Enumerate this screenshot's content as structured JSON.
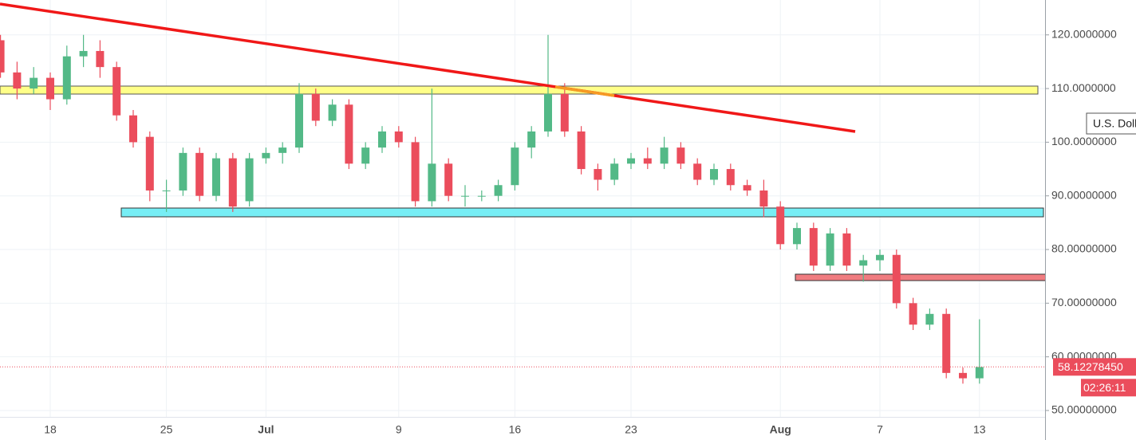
{
  "chart_data": {
    "type": "candlestick",
    "categories": [
      null,
      null,
      null,
      "18",
      null,
      null,
      null,
      null,
      null,
      null,
      "25",
      null,
      null,
      null,
      null,
      null,
      "Jul",
      null,
      null,
      null,
      null,
      null,
      null,
      null,
      "9",
      null,
      null,
      null,
      null,
      null,
      null,
      "16",
      null,
      null,
      null,
      null,
      null,
      null,
      "23",
      null,
      null,
      null,
      null,
      null,
      null,
      null,
      null,
      "Aug",
      null,
      null,
      null,
      null,
      null,
      "7",
      null,
      null,
      null,
      null,
      null,
      "13",
      null,
      null,
      null
    ],
    "open": [
      119,
      113,
      110,
      112,
      108,
      116,
      117,
      114,
      105,
      101,
      91,
      91,
      98,
      90,
      97,
      89,
      97,
      98,
      99,
      109,
      104,
      107,
      96,
      99,
      102,
      100,
      89,
      96,
      90,
      90,
      90,
      92,
      99,
      102,
      109,
      102,
      95,
      93,
      96,
      97,
      96,
      99,
      96,
      93,
      95,
      92,
      91,
      88,
      81,
      84,
      77,
      83,
      77,
      78,
      79,
      70,
      66,
      68,
      57,
      56,
      null,
      null,
      null
    ],
    "high": [
      120,
      115,
      114,
      113,
      118,
      120,
      119,
      115,
      106,
      102,
      93,
      99,
      99,
      98,
      98,
      98,
      99,
      100,
      111,
      110,
      108,
      108,
      100,
      103,
      103,
      101,
      110,
      97,
      92,
      91,
      93,
      100,
      103,
      120,
      111,
      103,
      96,
      97,
      98,
      99,
      101,
      100,
      97,
      96,
      96,
      93,
      93,
      89,
      85,
      85,
      84,
      84,
      79,
      80,
      80,
      71,
      69,
      69,
      58,
      67,
      null,
      null,
      null
    ],
    "low": [
      112,
      108,
      109,
      106,
      107,
      114,
      112,
      104,
      99,
      89,
      87,
      90,
      89,
      89,
      87,
      88,
      96,
      96,
      98,
      103,
      103,
      95,
      95,
      98,
      99,
      88,
      88,
      89,
      88,
      89,
      89,
      91,
      97,
      101,
      101,
      94,
      91,
      92,
      95,
      95,
      95,
      95,
      92,
      92,
      91,
      90,
      86,
      80,
      80,
      76,
      76,
      76,
      74,
      76,
      69,
      65,
      65,
      56,
      55,
      55,
      null,
      null,
      null
    ],
    "close": [
      113,
      110,
      112,
      108,
      116,
      117,
      114,
      105,
      100,
      91,
      91,
      98,
      90,
      97,
      88,
      97,
      98,
      99,
      109,
      104,
      107,
      96,
      99,
      102,
      100,
      89,
      96,
      90,
      90,
      90,
      92,
      99,
      102,
      109,
      102,
      95,
      93,
      96,
      97,
      96,
      99,
      96,
      93,
      95,
      92,
      91,
      88,
      81,
      84,
      77,
      83,
      77,
      78,
      79,
      70,
      66,
      68,
      57,
      56,
      58.1,
      null,
      null,
      null
    ],
    "up_color": "#53b987",
    "down_color": "#eb4d5c",
    "ylim": [
      44.5,
      126.5
    ],
    "yticks": [
      {
        "value": 50,
        "label": "50.00000000"
      },
      {
        "value": 60,
        "label": "60.00000000"
      },
      {
        "value": 70,
        "label": "70.00000000"
      },
      {
        "value": 80,
        "label": "80.00000000"
      },
      {
        "value": 90,
        "label": "90.00000000"
      },
      {
        "value": 100,
        "label": "100.0000000"
      },
      {
        "value": 110,
        "label": "110.0000000"
      },
      {
        "value": 120,
        "label": "120.0000000"
      }
    ],
    "grid": true,
    "last_price": {
      "value": 58.1227845,
      "label": "58.12278450"
    },
    "countdown": "02:26:11",
    "currency": "U.S. Dollar"
  }
}
